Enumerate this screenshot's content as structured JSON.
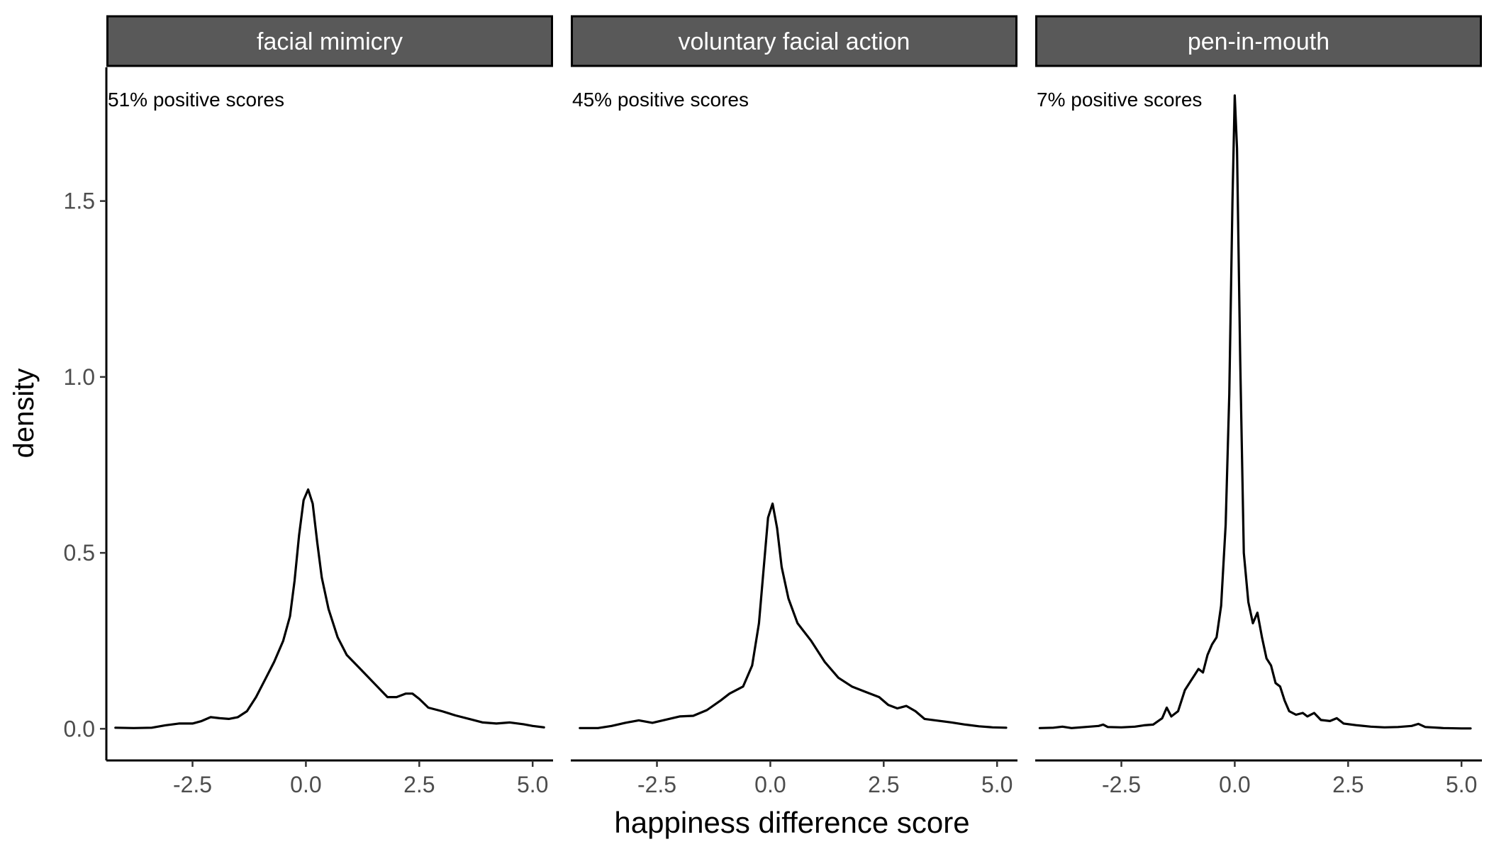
{
  "chart_data": {
    "type": "line",
    "subtype": "density",
    "xlabel": "happiness difference score",
    "ylabel": "density",
    "x_ticks": [
      -2.5,
      0.0,
      2.5,
      5.0
    ],
    "y_ticks": [
      0.0,
      0.5,
      1.0,
      1.5
    ],
    "xlim": [
      -4.4,
      5.45
    ],
    "ylim": [
      -0.09,
      1.88
    ],
    "grid": false,
    "facets": [
      {
        "strip_label": "facial mimicry",
        "annotation": "51% positive scores",
        "points": [
          [
            -4.2,
            0.003
          ],
          [
            -3.8,
            0.002
          ],
          [
            -3.4,
            0.003
          ],
          [
            -3.1,
            0.01
          ],
          [
            -2.8,
            0.015
          ],
          [
            -2.5,
            0.015
          ],
          [
            -2.3,
            0.022
          ],
          [
            -2.1,
            0.033
          ],
          [
            -1.9,
            0.03
          ],
          [
            -1.7,
            0.028
          ],
          [
            -1.5,
            0.033
          ],
          [
            -1.3,
            0.05
          ],
          [
            -1.1,
            0.09
          ],
          [
            -0.9,
            0.14
          ],
          [
            -0.7,
            0.19
          ],
          [
            -0.5,
            0.25
          ],
          [
            -0.35,
            0.32
          ],
          [
            -0.25,
            0.42
          ],
          [
            -0.15,
            0.55
          ],
          [
            -0.05,
            0.65
          ],
          [
            0.05,
            0.68
          ],
          [
            0.15,
            0.64
          ],
          [
            0.25,
            0.53
          ],
          [
            0.35,
            0.43
          ],
          [
            0.5,
            0.34
          ],
          [
            0.7,
            0.26
          ],
          [
            0.9,
            0.21
          ],
          [
            1.2,
            0.17
          ],
          [
            1.5,
            0.13
          ],
          [
            1.8,
            0.09
          ],
          [
            2.0,
            0.09
          ],
          [
            2.2,
            0.1
          ],
          [
            2.35,
            0.1
          ],
          [
            2.5,
            0.085
          ],
          [
            2.7,
            0.06
          ],
          [
            3.0,
            0.05
          ],
          [
            3.3,
            0.038
          ],
          [
            3.6,
            0.028
          ],
          [
            3.9,
            0.018
          ],
          [
            4.2,
            0.015
          ],
          [
            4.5,
            0.018
          ],
          [
            4.8,
            0.013
          ],
          [
            5.0,
            0.008
          ],
          [
            5.25,
            0.004
          ]
        ]
      },
      {
        "strip_label": "voluntary facial action",
        "annotation": "45% positive scores",
        "points": [
          [
            -4.2,
            0.002
          ],
          [
            -3.8,
            0.002
          ],
          [
            -3.5,
            0.008
          ],
          [
            -3.2,
            0.017
          ],
          [
            -2.9,
            0.024
          ],
          [
            -2.6,
            0.017
          ],
          [
            -2.3,
            0.026
          ],
          [
            -2.0,
            0.035
          ],
          [
            -1.7,
            0.037
          ],
          [
            -1.4,
            0.053
          ],
          [
            -1.1,
            0.08
          ],
          [
            -0.9,
            0.1
          ],
          [
            -0.6,
            0.12
          ],
          [
            -0.4,
            0.18
          ],
          [
            -0.25,
            0.3
          ],
          [
            -0.15,
            0.45
          ],
          [
            -0.05,
            0.6
          ],
          [
            0.05,
            0.64
          ],
          [
            0.15,
            0.57
          ],
          [
            0.25,
            0.46
          ],
          [
            0.4,
            0.37
          ],
          [
            0.6,
            0.3
          ],
          [
            0.9,
            0.25
          ],
          [
            1.2,
            0.19
          ],
          [
            1.5,
            0.145
          ],
          [
            1.8,
            0.12
          ],
          [
            2.1,
            0.105
          ],
          [
            2.4,
            0.09
          ],
          [
            2.6,
            0.068
          ],
          [
            2.8,
            0.058
          ],
          [
            3.0,
            0.065
          ],
          [
            3.2,
            0.05
          ],
          [
            3.4,
            0.028
          ],
          [
            3.7,
            0.023
          ],
          [
            4.0,
            0.018
          ],
          [
            4.3,
            0.012
          ],
          [
            4.6,
            0.007
          ],
          [
            4.9,
            0.004
          ],
          [
            5.2,
            0.003
          ]
        ]
      },
      {
        "strip_label": "pen-in-mouth",
        "annotation": "7% positive scores",
        "points": [
          [
            -4.3,
            0.002
          ],
          [
            -4.0,
            0.003
          ],
          [
            -3.8,
            0.006
          ],
          [
            -3.6,
            0.002
          ],
          [
            -3.3,
            0.005
          ],
          [
            -3.0,
            0.008
          ],
          [
            -2.9,
            0.012
          ],
          [
            -2.8,
            0.005
          ],
          [
            -2.5,
            0.004
          ],
          [
            -2.2,
            0.006
          ],
          [
            -2.0,
            0.01
          ],
          [
            -1.8,
            0.012
          ],
          [
            -1.6,
            0.03
          ],
          [
            -1.5,
            0.06
          ],
          [
            -1.4,
            0.035
          ],
          [
            -1.25,
            0.05
          ],
          [
            -1.1,
            0.11
          ],
          [
            -1.0,
            0.13
          ],
          [
            -0.9,
            0.15
          ],
          [
            -0.8,
            0.17
          ],
          [
            -0.7,
            0.16
          ],
          [
            -0.6,
            0.21
          ],
          [
            -0.5,
            0.24
          ],
          [
            -0.4,
            0.26
          ],
          [
            -0.3,
            0.35
          ],
          [
            -0.2,
            0.58
          ],
          [
            -0.12,
            0.95
          ],
          [
            -0.05,
            1.5
          ],
          [
            0.0,
            1.8
          ],
          [
            0.05,
            1.65
          ],
          [
            0.12,
            1.05
          ],
          [
            0.2,
            0.5
          ],
          [
            0.3,
            0.36
          ],
          [
            0.4,
            0.3
          ],
          [
            0.5,
            0.33
          ],
          [
            0.6,
            0.26
          ],
          [
            0.7,
            0.2
          ],
          [
            0.8,
            0.18
          ],
          [
            0.9,
            0.13
          ],
          [
            1.0,
            0.12
          ],
          [
            1.1,
            0.08
          ],
          [
            1.2,
            0.05
          ],
          [
            1.35,
            0.04
          ],
          [
            1.5,
            0.045
          ],
          [
            1.6,
            0.035
          ],
          [
            1.75,
            0.045
          ],
          [
            1.9,
            0.025
          ],
          [
            2.1,
            0.022
          ],
          [
            2.25,
            0.03
          ],
          [
            2.4,
            0.015
          ],
          [
            2.7,
            0.01
          ],
          [
            3.0,
            0.006
          ],
          [
            3.3,
            0.004
          ],
          [
            3.6,
            0.005
          ],
          [
            3.9,
            0.008
          ],
          [
            4.05,
            0.014
          ],
          [
            4.2,
            0.005
          ],
          [
            4.6,
            0.002
          ],
          [
            5.0,
            0.001
          ],
          [
            5.2,
            0.001
          ]
        ]
      }
    ]
  }
}
